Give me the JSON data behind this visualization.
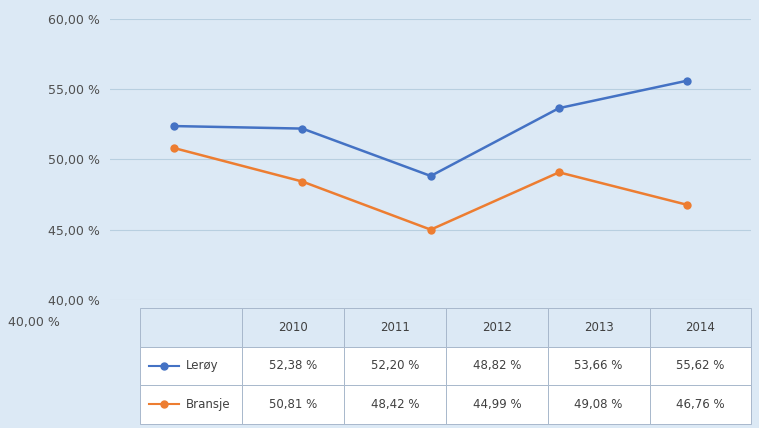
{
  "years": [
    2010,
    2011,
    2012,
    2013,
    2014
  ],
  "leroy": [
    52.38,
    52.2,
    48.82,
    53.66,
    55.62
  ],
  "bransje": [
    50.81,
    48.42,
    44.99,
    49.08,
    46.76
  ],
  "leroy_color": "#4472C4",
  "bransje_color": "#ED7D31",
  "bg_color": "#dce9f5",
  "ylim_min": 40.0,
  "ylim_max": 60.0,
  "yticks": [
    40.0,
    45.0,
    50.0,
    55.0,
    60.0
  ],
  "ytick_labels": [
    "40,00 %",
    "45,00 %",
    "50,00 %",
    "55,00 %",
    "60,00 %"
  ],
  "grid_color": "#b8cfe0",
  "leroy_label": "Lerøy",
  "bransje_label": "Bransje",
  "table_years": [
    "2010",
    "2011",
    "2012",
    "2013",
    "2014"
  ],
  "leroy_values_str": [
    "52,38 %",
    "52,20 %",
    "48,82 %",
    "53,66 %",
    "55,62 %"
  ],
  "bransje_values_str": [
    "50,81 %",
    "48,42 %",
    "44,99 %",
    "49,08 %",
    "46,76 %"
  ],
  "cell_edge": "#a8b8cc",
  "table_bg": "white",
  "header_bg": "#dce9f5"
}
